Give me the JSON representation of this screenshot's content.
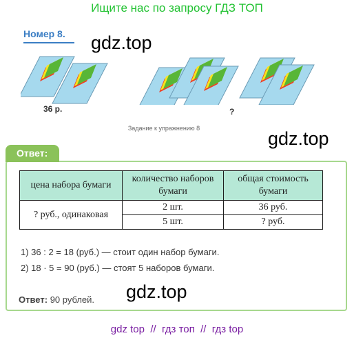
{
  "banner": "Ищите нас по запросу ГДЗ ТОП",
  "task": {
    "number_label": "Номер 8."
  },
  "watermark": "gdz.top",
  "figure": {
    "price_label": "36 р.",
    "question_label": "?",
    "caption": "Задание к упражнению 8"
  },
  "answer_tab": "Ответ:",
  "table": {
    "headers": [
      "цена набора бумаги",
      "количество наборов бумаги",
      "общая стоимость бумаги"
    ],
    "price": "? руб., одинаковая",
    "rows": [
      {
        "count": "2 шт.",
        "total": "36 руб."
      },
      {
        "count": "5 шт.",
        "total": "? руб."
      }
    ]
  },
  "solution": [
    "1) 36 : 2 = 18 (руб.) — стоит один набор бумаги.",
    "2) 18 · 5 = 90 (руб.) — стоят 5 наборов бумаги."
  ],
  "final_answer": {
    "label": "Ответ:",
    "value": "90 рублей."
  },
  "footer_links": "gdz top  //  гдз топ  //  гдз top",
  "colors": {
    "banner_green": "#22c232",
    "task_blue": "#3b7ec4",
    "answer_green": "#8bc25a",
    "table_header": "#b6e8d6",
    "footer_purple": "#7a1fa2"
  }
}
